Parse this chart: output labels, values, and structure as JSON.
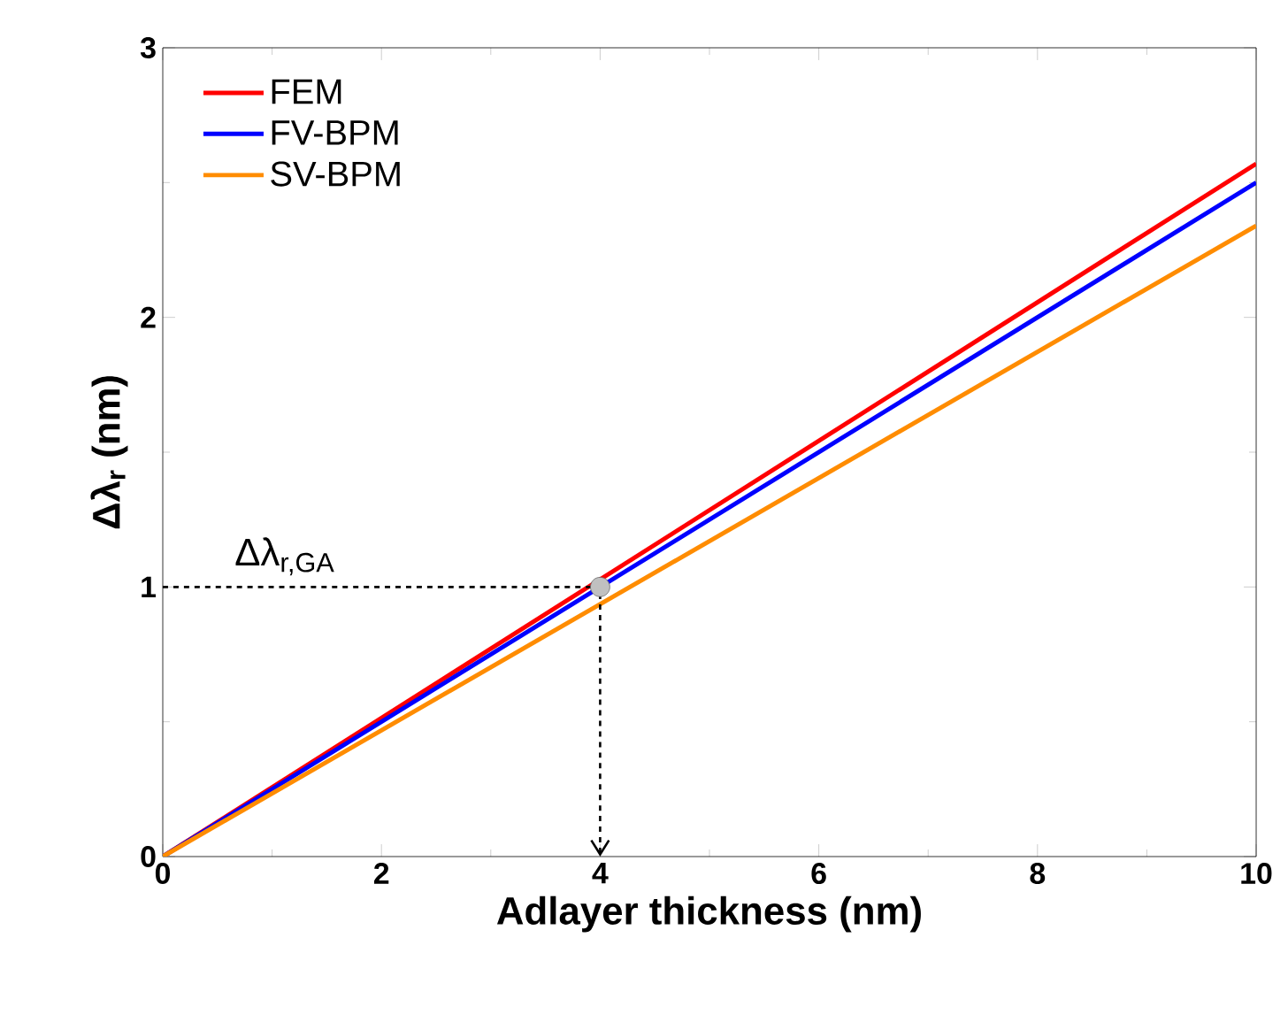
{
  "chart_data": {
    "type": "line",
    "xlabel": "Adlayer thickness (nm)",
    "ylabel": "Δλ$_{r}$ (nm)",
    "x": [
      0,
      10
    ],
    "xlim": [
      0,
      10
    ],
    "ylim": [
      0,
      3
    ],
    "xticks": [
      0,
      2,
      4,
      6,
      8,
      10
    ],
    "yticks": [
      0,
      1,
      2,
      3
    ],
    "legend": "top left",
    "grid": false,
    "series": [
      {
        "name": "FEM",
        "color": "#ff0000",
        "values": [
          0,
          2.57
        ]
      },
      {
        "name": "FV-BPM",
        "color": "#0000ff",
        "values": [
          0,
          2.5
        ]
      },
      {
        "name": "SV-BPM",
        "color": "#ff8c00",
        "values": [
          0,
          2.34
        ]
      },
      {
        "type": "scatter",
        "color": "#c0c0c0",
        "x": [
          4
        ],
        "values": [
          1
        ]
      }
    ],
    "annotations": [
      "Δλ$_{r,GA}$"
    ]
  }
}
